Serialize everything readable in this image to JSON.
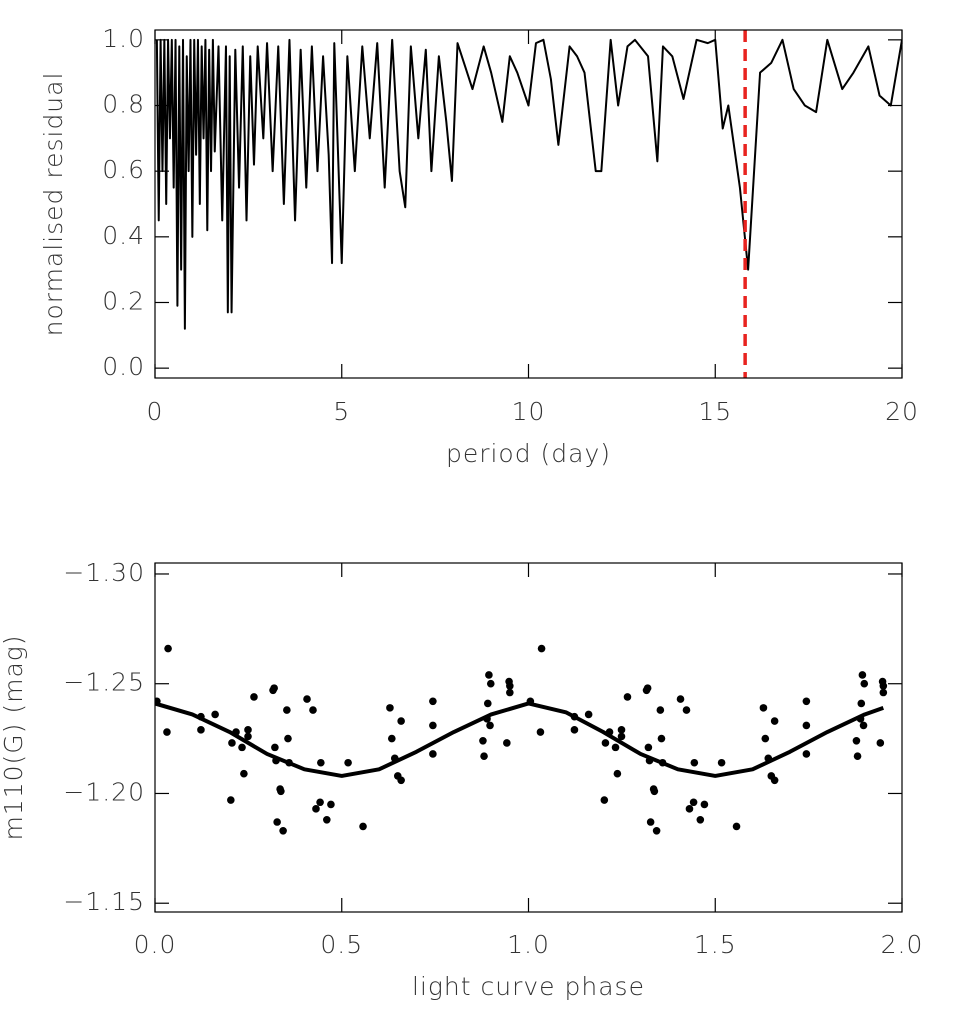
{
  "chart_data": [
    {
      "type": "line",
      "xlabel": "period (day)",
      "ylabel": "normalised residual",
      "xlim": [
        0,
        20
      ],
      "ylim": [
        -0.03,
        1.03
      ],
      "xticks": [
        0,
        5,
        10,
        15,
        20
      ],
      "yticks": [
        {
          "value": 0,
          "label": "0.0"
        },
        {
          "value": 0.2,
          "label": "0.2"
        },
        {
          "value": 0.4,
          "label": "0.4"
        },
        {
          "value": 0.6,
          "label": "0.6"
        },
        {
          "value": 0.8,
          "label": "0.8"
        },
        {
          "value": 1,
          "label": "1.0"
        }
      ],
      "color": "#000000",
      "vline": {
        "x": 15.8,
        "color": "#e8231f"
      },
      "x": [
        0.05,
        0.1,
        0.15,
        0.2,
        0.25,
        0.3,
        0.35,
        0.4,
        0.45,
        0.5,
        0.55,
        0.6,
        0.65,
        0.7,
        0.75,
        0.8,
        0.85,
        0.9,
        0.95,
        1.0,
        1.05,
        1.1,
        1.15,
        1.2,
        1.25,
        1.3,
        1.35,
        1.4,
        1.45,
        1.5,
        1.55,
        1.6,
        1.7,
        1.8,
        1.9,
        1.95,
        2.0,
        2.05,
        2.15,
        2.25,
        2.35,
        2.45,
        2.55,
        2.65,
        2.75,
        2.9,
        3.0,
        3.15,
        3.3,
        3.45,
        3.6,
        3.75,
        3.9,
        4.05,
        4.2,
        4.35,
        4.5,
        4.65,
        4.74,
        4.8,
        5.0,
        5.15,
        5.35,
        5.55,
        5.75,
        5.95,
        6.15,
        6.35,
        6.55,
        6.7,
        6.85,
        7.05,
        7.25,
        7.4,
        7.6,
        7.8,
        7.95,
        8.1,
        8.3,
        8.5,
        8.8,
        9.0,
        9.3,
        9.5,
        9.7,
        10.0,
        10.2,
        10.4,
        10.6,
        10.8,
        11.1,
        11.3,
        11.5,
        11.8,
        11.95,
        12.2,
        12.4,
        12.65,
        12.85,
        13.2,
        13.45,
        13.6,
        13.85,
        14.15,
        14.5,
        14.8,
        15.0,
        15.2,
        15.35,
        15.66,
        15.88,
        16.2,
        16.5,
        16.8,
        17.1,
        17.4,
        17.7,
        18.0,
        18.4,
        18.7,
        19.1,
        19.4,
        19.7,
        20.0
      ],
      "values": [
        1.0,
        0.45,
        1.0,
        0.6,
        1.0,
        0.5,
        1.0,
        0.7,
        1.0,
        0.55,
        1.0,
        0.19,
        0.98,
        0.3,
        1.0,
        0.12,
        0.95,
        0.6,
        1.0,
        0.4,
        1.0,
        0.65,
        1.0,
        0.5,
        0.98,
        0.7,
        1.0,
        0.42,
        0.97,
        0.6,
        1.0,
        0.66,
        0.98,
        0.45,
        0.98,
        0.17,
        0.95,
        0.17,
        0.97,
        0.55,
        0.98,
        0.45,
        0.95,
        0.62,
        0.98,
        0.7,
        0.99,
        0.6,
        0.98,
        0.5,
        1.0,
        0.45,
        0.97,
        0.55,
        0.98,
        0.6,
        0.95,
        0.65,
        0.32,
        0.99,
        0.32,
        0.95,
        0.6,
        0.98,
        0.7,
        0.99,
        0.55,
        1.0,
        0.6,
        0.49,
        0.98,
        0.7,
        0.97,
        0.6,
        0.95,
        0.75,
        0.57,
        0.99,
        0.92,
        0.85,
        0.98,
        0.9,
        0.75,
        0.95,
        0.9,
        0.8,
        0.99,
        1.0,
        0.88,
        0.68,
        0.98,
        0.95,
        0.9,
        0.6,
        0.6,
        1.0,
        0.8,
        0.98,
        1.0,
        0.95,
        0.63,
        0.98,
        0.95,
        0.82,
        1.0,
        0.99,
        1.0,
        0.73,
        0.8,
        0.55,
        0.3,
        0.9,
        0.93,
        1.0,
        0.85,
        0.8,
        0.78,
        1.0,
        0.85,
        0.9,
        0.98,
        0.83,
        0.8,
        1.0
      ]
    },
    {
      "type": "scatter",
      "xlabel": "light curve phase",
      "ylabel": "m110(G) (mag)",
      "xlim": [
        0,
        2
      ],
      "ylim": [
        -1.146,
        -1.305
      ],
      "xticks": [
        {
          "value": 0,
          "label": "0.0"
        },
        {
          "value": 0.5,
          "label": "0.5"
        },
        {
          "value": 1,
          "label": "1.0"
        },
        {
          "value": 1.5,
          "label": "1.5"
        },
        {
          "value": 2,
          "label": "2.0"
        }
      ],
      "yticks": [
        {
          "value": -1.3,
          "label": "−1.30"
        },
        {
          "value": -1.25,
          "label": "−1.25"
        },
        {
          "value": -1.2,
          "label": "−1.20"
        },
        {
          "value": -1.15,
          "label": "−1.15"
        }
      ],
      "series": [
        {
          "type": "scatter",
          "color": "#000000",
          "x": [
            0.005,
            0.035,
            0.032,
            0.123,
            0.123,
            0.161,
            0.203,
            0.206,
            0.217,
            0.233,
            0.238,
            0.249,
            0.249,
            0.265,
            0.316,
            0.319,
            0.321,
            0.324,
            0.327,
            0.335,
            0.337,
            0.343,
            0.353,
            0.356,
            0.359,
            0.407,
            0.423,
            0.431,
            0.442,
            0.444,
            0.46,
            0.471,
            0.517,
            0.557,
            0.629,
            0.634,
            0.642,
            0.65,
            0.659,
            0.659,
            0.744,
            0.744,
            0.744,
            0.878,
            0.881,
            0.889,
            0.891,
            0.894,
            0.897,
            0.899,
            0.942,
            0.948,
            0.95,
            0.95,
            1.005,
            1.035,
            1.032,
            1.123,
            1.123,
            1.161,
            1.203,
            1.206,
            1.217,
            1.233,
            1.238,
            1.249,
            1.249,
            1.265,
            1.316,
            1.319,
            1.321,
            1.324,
            1.327,
            1.335,
            1.337,
            1.343,
            1.353,
            1.356,
            1.359,
            1.407,
            1.423,
            1.431,
            1.442,
            1.444,
            1.46,
            1.471,
            1.517,
            1.557,
            1.629,
            1.634,
            1.642,
            1.65,
            1.659,
            1.659,
            1.744,
            1.744,
            1.744,
            1.878,
            1.881,
            1.889,
            1.891,
            1.894,
            1.897,
            1.899,
            1.942,
            1.948,
            1.95,
            1.95
          ],
          "values": [
            -1.242,
            -1.266,
            -1.228,
            -1.235,
            -1.229,
            -1.236,
            -1.197,
            -1.223,
            -1.228,
            -1.221,
            -1.209,
            -1.229,
            -1.226,
            -1.244,
            -1.247,
            -1.248,
            -1.221,
            -1.215,
            -1.187,
            -1.202,
            -1.201,
            -1.183,
            -1.238,
            -1.225,
            -1.214,
            -1.243,
            -1.238,
            -1.193,
            -1.196,
            -1.214,
            -1.188,
            -1.195,
            -1.214,
            -1.185,
            -1.239,
            -1.225,
            -1.216,
            -1.208,
            -1.233,
            -1.206,
            -1.242,
            -1.231,
            -1.218,
            -1.224,
            -1.217,
            -1.234,
            -1.241,
            -1.254,
            -1.231,
            -1.25,
            -1.223,
            -1.251,
            -1.249,
            -1.246,
            -1.242,
            -1.266,
            -1.228,
            -1.235,
            -1.229,
            -1.236,
            -1.197,
            -1.223,
            -1.228,
            -1.221,
            -1.209,
            -1.229,
            -1.226,
            -1.244,
            -1.247,
            -1.248,
            -1.221,
            -1.215,
            -1.187,
            -1.202,
            -1.201,
            -1.183,
            -1.238,
            -1.225,
            -1.214,
            -1.243,
            -1.238,
            -1.193,
            -1.196,
            -1.214,
            -1.188,
            -1.195,
            -1.214,
            -1.185,
            -1.239,
            -1.225,
            -1.216,
            -1.208,
            -1.233,
            -1.206,
            -1.242,
            -1.231,
            -1.218,
            -1.224,
            -1.217,
            -1.234,
            -1.241,
            -1.254,
            -1.231,
            -1.25,
            -1.223,
            -1.251,
            -1.249,
            -1.246
          ]
        },
        {
          "type": "line",
          "color": "#000000",
          "x": [
            0,
            0.1,
            0.2,
            0.3,
            0.4,
            0.5,
            0.6,
            0.7,
            0.8,
            0.9,
            1.0,
            1.1,
            1.2,
            1.3,
            1.4,
            1.5,
            1.6,
            1.7,
            1.8,
            1.9,
            1.95
          ],
          "values": [
            -1.241,
            -1.236,
            -1.228,
            -1.218,
            -1.211,
            -1.208,
            -1.211,
            -1.219,
            -1.228,
            -1.236,
            -1.241,
            -1.237,
            -1.228,
            -1.218,
            -1.211,
            -1.208,
            -1.211,
            -1.219,
            -1.228,
            -1.236,
            -1.239
          ]
        }
      ]
    }
  ]
}
